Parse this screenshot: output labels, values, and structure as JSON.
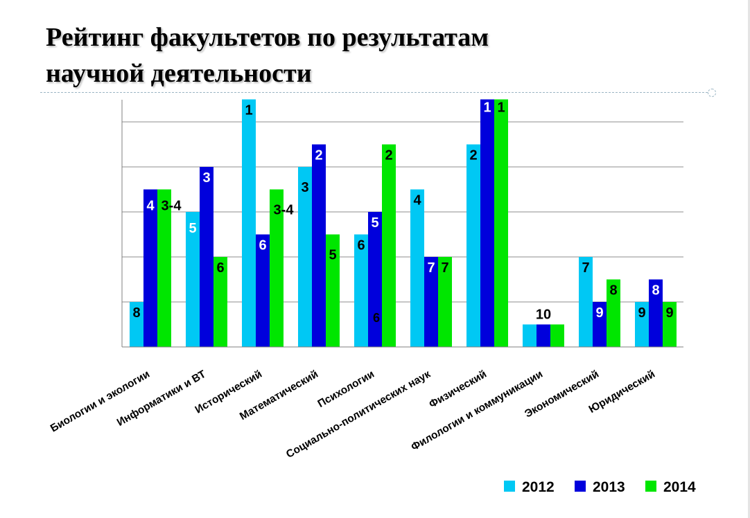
{
  "title_line1": "Рейтинг факультетов по результатам",
  "title_line2": "научной деятельности",
  "chart_data": {
    "type": "bar",
    "title": "Рейтинг факультетов по результатам научной деятельности",
    "categories": [
      "Биологии и экологии",
      "Информатики и ВТ",
      "Исторический",
      "Математический",
      "Психологии",
      "Социально-политических наук",
      "Физический",
      "Филологии и коммуникации",
      "Экономический",
      "Юридический"
    ],
    "series": [
      {
        "name": "2012",
        "color": "#00c8f4",
        "values": [
          2,
          6,
          11,
          8,
          5,
          7,
          9,
          1,
          4,
          2
        ],
        "labels": [
          "8",
          "5",
          "1",
          "3",
          "6",
          "4",
          "2",
          "",
          "7",
          "9"
        ]
      },
      {
        "name": "2013",
        "color": "#0000dc",
        "values": [
          7,
          8,
          5,
          9,
          6,
          4,
          11,
          1,
          2,
          3
        ],
        "labels": [
          "4",
          "3",
          "6",
          "2",
          "5",
          "7",
          "1",
          "10",
          "9",
          "8"
        ]
      },
      {
        "name": "2014",
        "color": "#00e600",
        "values": [
          7,
          4,
          7,
          5,
          9,
          4,
          11,
          1,
          3,
          2
        ],
        "labels": [
          "3-4",
          "6",
          "3-4",
          "5",
          "2",
          "7",
          "1",
          "",
          "8",
          "9"
        ]
      }
    ],
    "stray_label": "6",
    "ylim": [
      0,
      11
    ],
    "gridlines": [
      2,
      4,
      6,
      8,
      10
    ],
    "legend": "bottom-right"
  }
}
